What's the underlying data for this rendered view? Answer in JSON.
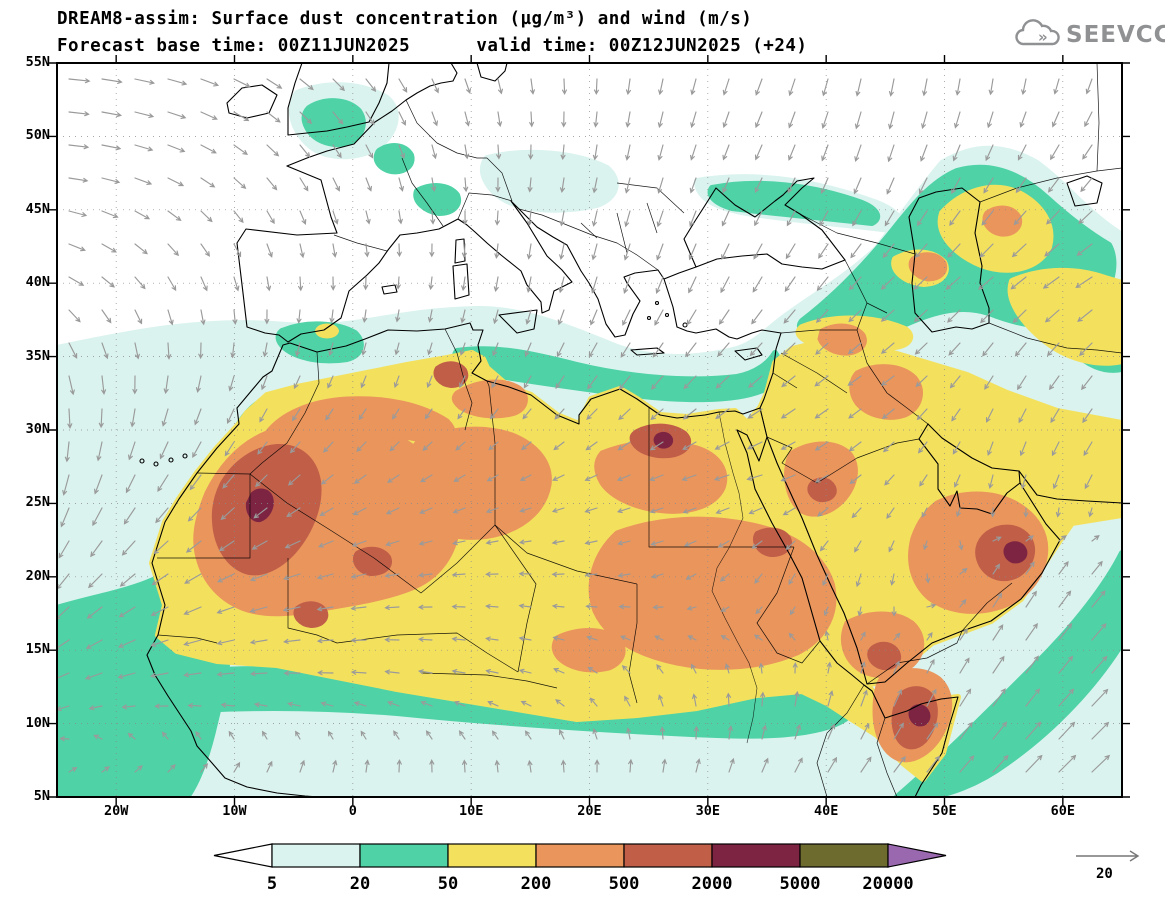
{
  "header": {
    "title_line1": "DREAM8-assim: Surface dust concentration (µg/m³) and wind (m/s)",
    "title_line2": "Forecast base time: 00Z11JUN2025      valid time: 00Z12JUN2025 (+24)",
    "logo_text": "SEEVCCC"
  },
  "chart_data": {
    "type": "heatmap",
    "title": "DREAM8-assim: Surface dust concentration (µg/m³) and wind (m/s)",
    "subtitle": "Forecast base time: 00Z11JUN2025      valid time: 00Z12JUN2025 (+24)",
    "model": "DREAM8-assim",
    "forecast_base_time": "00Z11JUN2025",
    "valid_time": "00Z12JUN2025 (+24)",
    "lat_ticks": [
      "55N",
      "50N",
      "45N",
      "40N",
      "35N",
      "30N",
      "25N",
      "20N",
      "15N",
      "10N",
      "5N"
    ],
    "lat_tick_deg": [
      55,
      50,
      45,
      40,
      35,
      30,
      25,
      20,
      15,
      10,
      5
    ],
    "lon_ticks": [
      "20W",
      "10W",
      "0",
      "10E",
      "20E",
      "30E",
      "40E",
      "50E",
      "60E"
    ],
    "lon_tick_deg": [
      -20,
      -10,
      0,
      10,
      20,
      30,
      40,
      50,
      60
    ],
    "lat_range_deg": [
      5,
      55
    ],
    "lon_range_deg": [
      -25,
      65
    ],
    "grid": true,
    "legend": {
      "levels": [
        "5",
        "20",
        "50",
        "200",
        "500",
        "2000",
        "5000",
        "20000"
      ],
      "colors": [
        "#ffffff",
        "#daf3ee",
        "#4ed2a6",
        "#f3e15e",
        "#ea955c",
        "#c05e48",
        "#7d2442",
        "#6d6b2e",
        "#9a68ae"
      ],
      "units": "µg/m³"
    },
    "wind_reference": {
      "value": "20",
      "units": "m/s"
    },
    "wind_field": {
      "angles_deg": [
        [
          -5,
          -15,
          -35,
          -60,
          -80,
          -100,
          -110,
          -100,
          -95,
          -110
        ],
        [
          -5,
          -25,
          -55,
          -75,
          -95,
          -105,
          -115,
          -110,
          -120,
          -130
        ],
        [
          -25,
          -60,
          -85,
          -95,
          -100,
          -110,
          -120,
          -135,
          -140,
          -150
        ],
        [
          -75,
          -100,
          -115,
          -110,
          -120,
          -130,
          -140,
          -145,
          -120,
          -130
        ],
        [
          -105,
          -125,
          -140,
          -150,
          -155,
          -160,
          -165,
          -135,
          -100,
          -120
        ],
        [
          -130,
          -150,
          -165,
          -175,
          175,
          -170,
          -120,
          -100,
          60,
          50
        ],
        [
          -160,
          -175,
          178,
          170,
          165,
          120,
          90,
          70,
          55,
          45
        ],
        [
          25,
          35,
          55,
          75,
          85,
          75,
          60,
          50,
          45,
          42
        ]
      ],
      "speed": [
        [
          1.1,
          1.0,
          0.9,
          0.8,
          0.8,
          0.8,
          0.9,
          0.9,
          0.8,
          0.8
        ],
        [
          1.0,
          0.9,
          0.8,
          0.7,
          0.7,
          0.8,
          0.8,
          0.9,
          0.9,
          0.9
        ],
        [
          0.9,
          0.8,
          0.7,
          0.6,
          0.8,
          0.9,
          0.9,
          0.9,
          1.0,
          1.0
        ],
        [
          1.0,
          0.9,
          0.7,
          0.6,
          0.7,
          0.9,
          0.9,
          0.8,
          0.8,
          0.9
        ],
        [
          1.1,
          1.0,
          0.8,
          0.7,
          0.6,
          0.7,
          0.8,
          0.7,
          0.7,
          0.8
        ],
        [
          1.0,
          1.0,
          0.9,
          0.7,
          0.6,
          0.6,
          0.6,
          0.7,
          0.9,
          1.1
        ],
        [
          0.9,
          0.9,
          0.8,
          0.7,
          0.6,
          0.6,
          0.7,
          0.9,
          1.1,
          1.2
        ],
        [
          0.8,
          0.9,
          0.9,
          0.8,
          0.7,
          0.7,
          0.8,
          1.0,
          1.2,
          1.3
        ]
      ]
    }
  }
}
